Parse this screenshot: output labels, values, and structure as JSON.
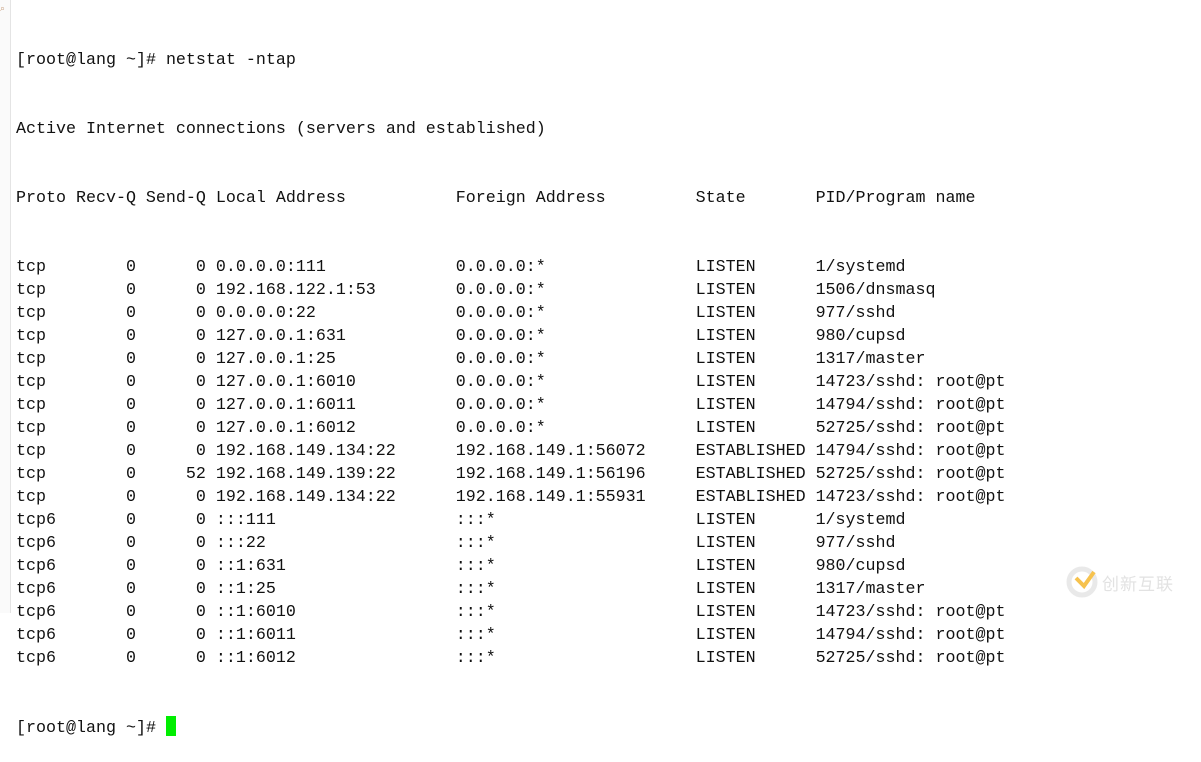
{
  "terminal": {
    "prompt": "[root@lang ~]# ",
    "command": "netstat -ntap",
    "title_line": "Active Internet connections (servers and established)",
    "headers": [
      "Proto",
      "Recv-Q",
      "Send-Q",
      "Local Address",
      "Foreign Address",
      "State",
      "PID/Program name"
    ],
    "rows": [
      [
        "tcp",
        "0",
        "0",
        "0.0.0.0:111",
        "0.0.0.0:*",
        "LISTEN",
        "1/systemd"
      ],
      [
        "tcp",
        "0",
        "0",
        "192.168.122.1:53",
        "0.0.0.0:*",
        "LISTEN",
        "1506/dnsmasq"
      ],
      [
        "tcp",
        "0",
        "0",
        "0.0.0.0:22",
        "0.0.0.0:*",
        "LISTEN",
        "977/sshd"
      ],
      [
        "tcp",
        "0",
        "0",
        "127.0.0.1:631",
        "0.0.0.0:*",
        "LISTEN",
        "980/cupsd"
      ],
      [
        "tcp",
        "0",
        "0",
        "127.0.0.1:25",
        "0.0.0.0:*",
        "LISTEN",
        "1317/master"
      ],
      [
        "tcp",
        "0",
        "0",
        "127.0.0.1:6010",
        "0.0.0.0:*",
        "LISTEN",
        "14723/sshd: root@pt"
      ],
      [
        "tcp",
        "0",
        "0",
        "127.0.0.1:6011",
        "0.0.0.0:*",
        "LISTEN",
        "14794/sshd: root@pt"
      ],
      [
        "tcp",
        "0",
        "0",
        "127.0.0.1:6012",
        "0.0.0.0:*",
        "LISTEN",
        "52725/sshd: root@pt"
      ],
      [
        "tcp",
        "0",
        "0",
        "192.168.149.134:22",
        "192.168.149.1:56072",
        "ESTABLISHED",
        "14794/sshd: root@pt"
      ],
      [
        "tcp",
        "0",
        "52",
        "192.168.149.139:22",
        "192.168.149.1:56196",
        "ESTABLISHED",
        "52725/sshd: root@pt"
      ],
      [
        "tcp",
        "0",
        "0",
        "192.168.149.134:22",
        "192.168.149.1:55931",
        "ESTABLISHED",
        "14723/sshd: root@pt"
      ],
      [
        "tcp6",
        "0",
        "0",
        ":::111",
        ":::*",
        "LISTEN",
        "1/systemd"
      ],
      [
        "tcp6",
        "0",
        "0",
        ":::22",
        ":::*",
        "LISTEN",
        "977/sshd"
      ],
      [
        "tcp6",
        "0",
        "0",
        "::1:631",
        ":::*",
        "LISTEN",
        "980/cupsd"
      ],
      [
        "tcp6",
        "0",
        "0",
        "::1:25",
        ":::*",
        "LISTEN",
        "1317/master"
      ],
      [
        "tcp6",
        "0",
        "0",
        "::1:6010",
        ":::*",
        "LISTEN",
        "14723/sshd: root@pt"
      ],
      [
        "tcp6",
        "0",
        "0",
        "::1:6011",
        ":::*",
        "LISTEN",
        "14794/sshd: root@pt"
      ],
      [
        "tcp6",
        "0",
        "0",
        "::1:6012",
        ":::*",
        "LISTEN",
        "52725/sshd: root@pt"
      ]
    ],
    "final_prompt": "[root@lang ~]#",
    "cursor_color": "#00ee00"
  },
  "watermark": {
    "text": "创新互联"
  }
}
